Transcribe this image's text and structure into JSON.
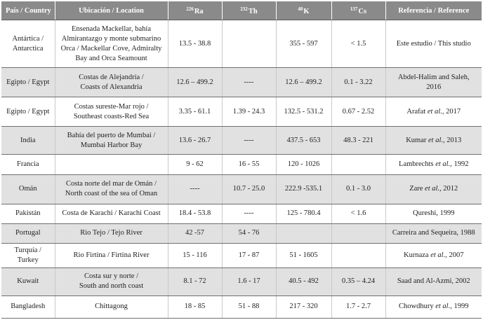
{
  "headers": {
    "country": "País / Country",
    "location": "Ubicación / Location",
    "ra_mass": "226",
    "ra_sym": "Ra",
    "th_mass": "232",
    "th_sym": "Th",
    "k_mass": "40",
    "k_sym": "K",
    "cs_mass": "137",
    "cs_sym": "Cs",
    "reference": "Referencia / Reference"
  },
  "rows": [
    {
      "country": "Antártica /\nAntarctica",
      "location": "Ensenada Mackellar, bahía\nAlmirantazgo y monte submarino\nOrca / Mackellar Cove, Admiralty\nBay and Orca Seamount",
      "ra": "13.5 - 38.8",
      "th": "",
      "k": "355 - 597",
      "cs": "< 1.5",
      "ref_pre": "Este estudio / This studio",
      "ref_em": "",
      "ref_post": ""
    },
    {
      "country": "Egipto / Egypt",
      "location": "Costas de Alejandría /\nCoasts of Alexandria",
      "ra": "12.6 – 499.2",
      "th": "----",
      "k": "12.6 – 499.2",
      "cs": "0.1 - 3.22",
      "ref_pre": "Abdel-Halim and Saleh,\n2016",
      "ref_em": "",
      "ref_post": ""
    },
    {
      "country": "Egipto / Egypt",
      "location": "Costas sureste-Mar rojo /\nSoutheast coasts-Red Sea",
      "ra": "3.35 - 61.1",
      "th": "1.39 - 24.3",
      "k": "132.5 - 531.2",
      "cs": "0.67 - 2.52",
      "ref_pre": "Arafat ",
      "ref_em": "et al.",
      "ref_post": ", 2017"
    },
    {
      "country": "India",
      "location": "Bahía del puerto de Mumbai /\nMumbai Harbor Bay",
      "ra": "13.6 - 26.7",
      "th": "----",
      "k": "437.5 - 653",
      "cs": "48.3 - 221",
      "ref_pre": "Kumar ",
      "ref_em": "et al.",
      "ref_post": ", 2013"
    },
    {
      "country": "Francia",
      "location": "",
      "ra": "9 - 62",
      "th": "16 - 55",
      "k": "120 - 1026",
      "cs": "",
      "ref_pre": "Lambrechts ",
      "ref_em": "et al.",
      "ref_post": ", 1992"
    },
    {
      "country": "Omán",
      "location": "Costa norte del mar de Omán /\nNorth coast of the sea of Oman",
      "ra": "----",
      "th": "10.7 - 25.0",
      "k": "222.9 -535.1",
      "cs": "0.1 - 3.0",
      "ref_pre": "Zare ",
      "ref_em": "et al.",
      "ref_post": ", 2012"
    },
    {
      "country": "Pakistán",
      "location": "Costa de Karachi / Karachi Coast",
      "ra": "18.4 - 53.8",
      "th": "----",
      "k": "125 - 780.4",
      "cs": "< 1.6",
      "ref_pre": "Qureshi, 1999",
      "ref_em": "",
      "ref_post": ""
    },
    {
      "country": "Portugal",
      "location": "Rio Tejo / Tejo River",
      "ra": "42 -57",
      "th": "54 - 76",
      "k": "",
      "cs": "",
      "ref_pre": "Carreira and Sequeira, 1988",
      "ref_em": "",
      "ref_post": ""
    },
    {
      "country": "Turquía /\nTurkey",
      "location": "Rio Firtina / Firtina River",
      "ra": "15 - 116",
      "th": "17 - 87",
      "k": "51 - 1605",
      "cs": "",
      "ref_pre": "Kurnaza ",
      "ref_em": "et al.",
      "ref_post": ", 2007"
    },
    {
      "country": "Kuwait",
      "location": "Costa sur y norte /\nSouth and north coast",
      "ra": "8.1 - 72",
      "th": "1.6 - 17",
      "k": "40.5 - 492",
      "cs": "0.35 – 4.24",
      "ref_pre": "Saad and Al-Azmi, 2002",
      "ref_em": "",
      "ref_post": ""
    },
    {
      "country": "Bangladesh",
      "location": "Chittagong",
      "ra": "18 - 85",
      "th": "51 - 88",
      "k": "217 - 320",
      "cs": "1.7 - 2.7",
      "ref_pre": "Chowdhury ",
      "ref_em": "et al.",
      "ref_post": ", 1999"
    }
  ]
}
